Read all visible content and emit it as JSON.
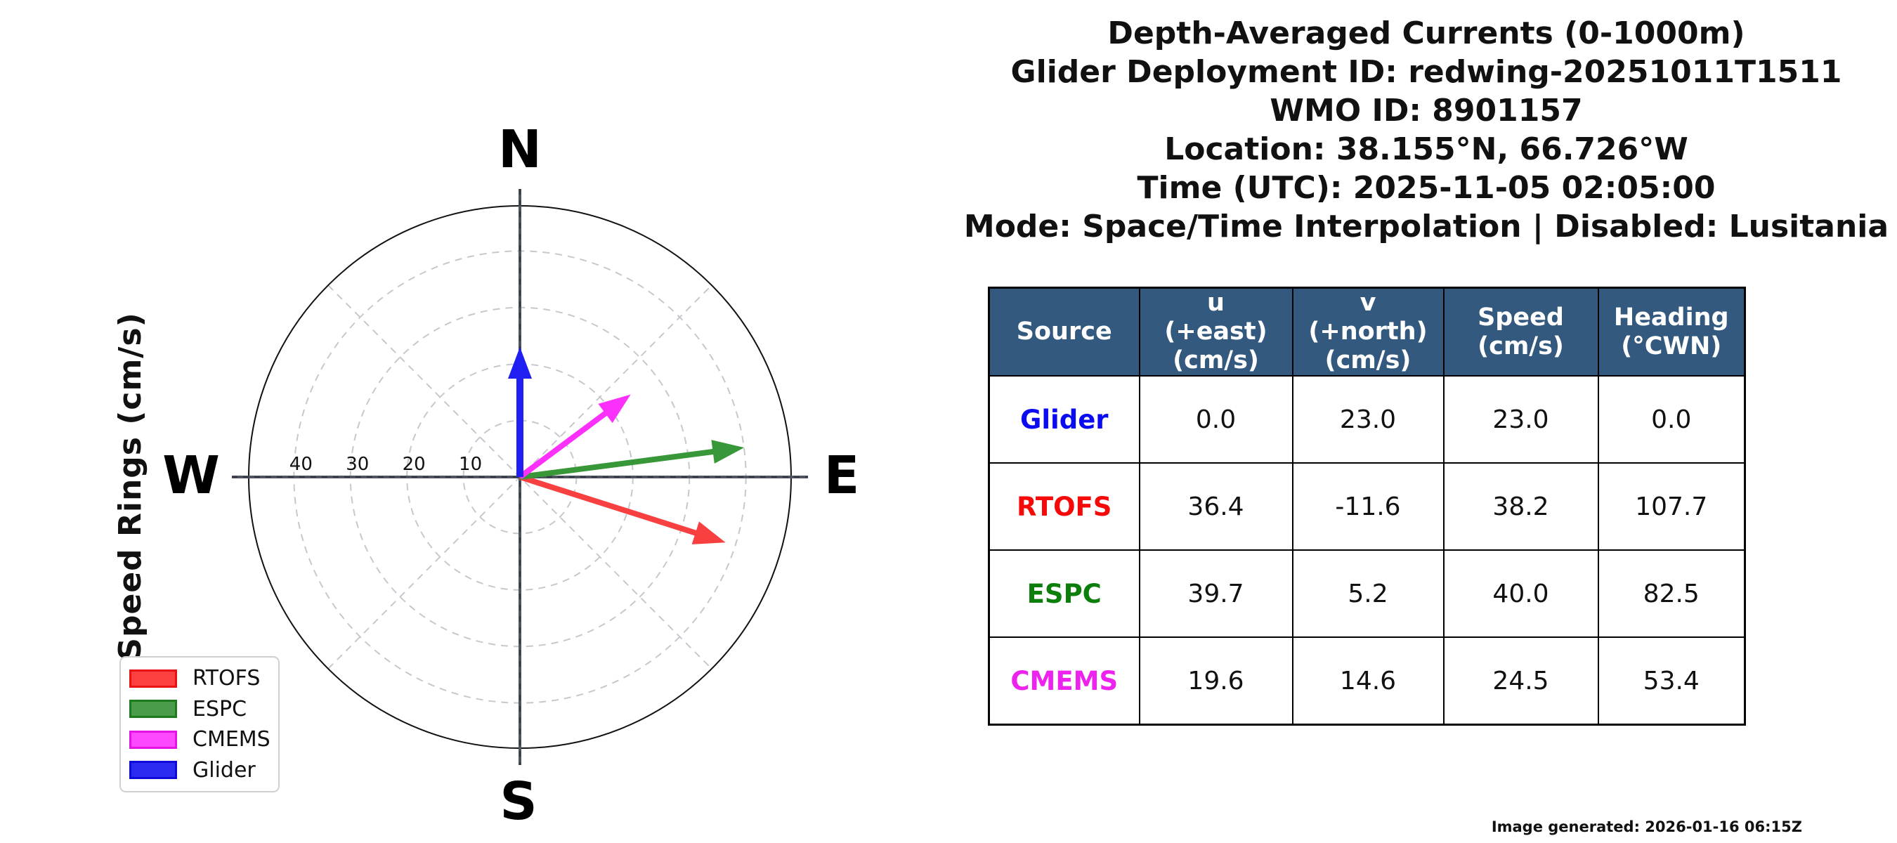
{
  "header": {
    "lines": [
      "Depth-Averaged Currents (0-1000m)",
      "Glider Deployment ID: redwing-20251011T1511",
      "WMO ID: 8901157",
      "Location: 38.155°N, 66.726°W",
      "Time (UTC): 2025-11-05 02:05:00",
      "Mode: Space/Time Interpolation | Disabled: Lusitania"
    ]
  },
  "chart_data": {
    "type": "quiver",
    "description": "Polar compass plot of depth-averaged current vectors (u east, v north) with dashed speed rings",
    "axis_label": "Speed Rings (cm/s)",
    "compass": {
      "north": "N",
      "east": "E",
      "south": "S",
      "west": "W"
    },
    "rings": [
      10,
      20,
      30,
      40
    ],
    "ring_unit": "cm/s",
    "rmax": 48,
    "grid": "dashed rings + 45-degree dashed diagonals",
    "vectors": [
      {
        "name": "RTOFS",
        "u": 36.4,
        "v": -11.6,
        "speed": 38.2,
        "heading_cwn": 107.7,
        "color": "#f94040",
        "lw": 8
      },
      {
        "name": "ESPC",
        "u": 39.7,
        "v": 5.2,
        "speed": 40.0,
        "heading_cwn": 82.5,
        "color": "#389738",
        "lw": 8
      },
      {
        "name": "CMEMS",
        "u": 19.6,
        "v": 14.6,
        "speed": 24.5,
        "heading_cwn": 53.4,
        "color": "#fb30fb",
        "lw": 8
      },
      {
        "name": "Glider",
        "u": 0.0,
        "v": 23.0,
        "speed": 23.0,
        "heading_cwn": 0.0,
        "color": "#1f1ff2",
        "lw": 10
      }
    ],
    "legend": [
      {
        "label": "RTOFS",
        "fill": "#fa4040",
        "edge": "#e81212"
      },
      {
        "label": "ESPC",
        "fill": "#4a9b4a",
        "edge": "#1d7a1d"
      },
      {
        "label": "CMEMS",
        "fill": "#fd49fd",
        "edge": "#e512e5"
      },
      {
        "label": "Glider",
        "fill": "#2a2af0",
        "edge": "#0c0cd6"
      }
    ],
    "legend_position": "lower-left"
  },
  "table": {
    "header_bg": "#33597f",
    "header_text_color": "#ffffff",
    "headers": [
      "Source",
      "u\n(+east)\n(cm/s)",
      "v\n(+north)\n(cm/s)",
      "Speed\n(cm/s)",
      "Heading\n(°CWN)"
    ],
    "rows": [
      {
        "source": "Glider",
        "color": "#0b0bf2",
        "u": "0.0",
        "v": "23.0",
        "speed": "23.0",
        "heading": "0.0"
      },
      {
        "source": "RTOFS",
        "color": "#f50a0a",
        "u": "36.4",
        "v": "-11.6",
        "speed": "38.2",
        "heading": "107.7"
      },
      {
        "source": "ESPC",
        "color": "#0c7e0c",
        "u": "39.7",
        "v": "5.2",
        "speed": "40.0",
        "heading": "82.5"
      },
      {
        "source": "CMEMS",
        "color": "#ee22ee",
        "u": "19.6",
        "v": "14.6",
        "speed": "24.5",
        "heading": "53.4"
      }
    ]
  },
  "footer": {
    "generated_text": "Image generated: 2026-01-16 06:15Z"
  }
}
